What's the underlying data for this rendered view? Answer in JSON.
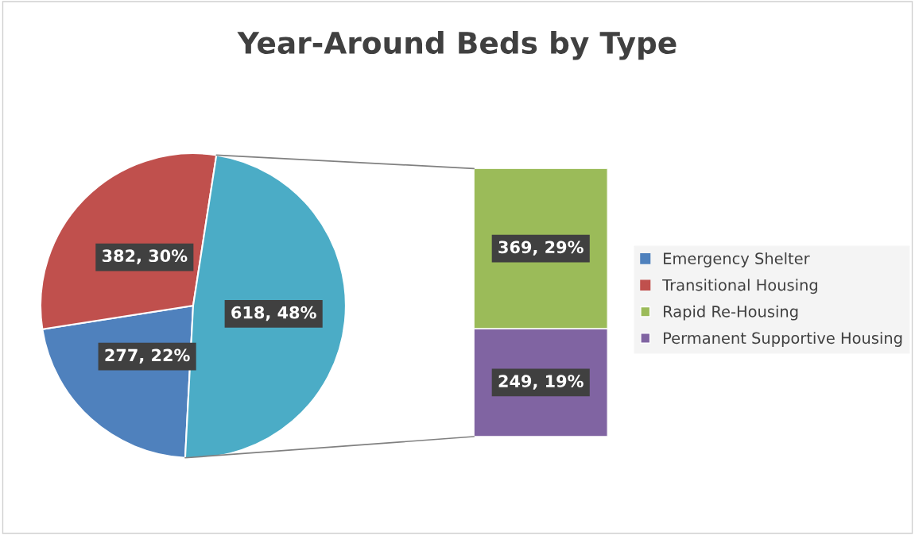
{
  "chart_data": [
    {
      "type": "pie",
      "title": "Year-Around Beds by Type",
      "categories": [
        "Emergency Shelter",
        "Transitional Housing",
        null
      ],
      "values": [
        277,
        382,
        618
      ],
      "colors": [
        "#4f81bd",
        "#c0504d",
        "#4bacc6"
      ],
      "value_labels": [
        "277, 22%",
        "382, 30%",
        "618, 48%"
      ],
      "legend": "right"
    },
    {
      "type": "bar",
      "stacked": true,
      "categories": [
        null
      ],
      "ylim": [
        0,
        618
      ],
      "tick_labels": false,
      "legend": "right",
      "series": [
        {
          "name": "Permanent Supportive Housing",
          "color": "#8064a2",
          "values": [
            249
          ],
          "value_labels": [
            "249, 19%"
          ]
        },
        {
          "name": "Rapid Re-Housing",
          "color": "#9bbb59",
          "values": [
            369
          ],
          "value_labels": [
            "369, 29%"
          ]
        }
      ]
    }
  ]
}
